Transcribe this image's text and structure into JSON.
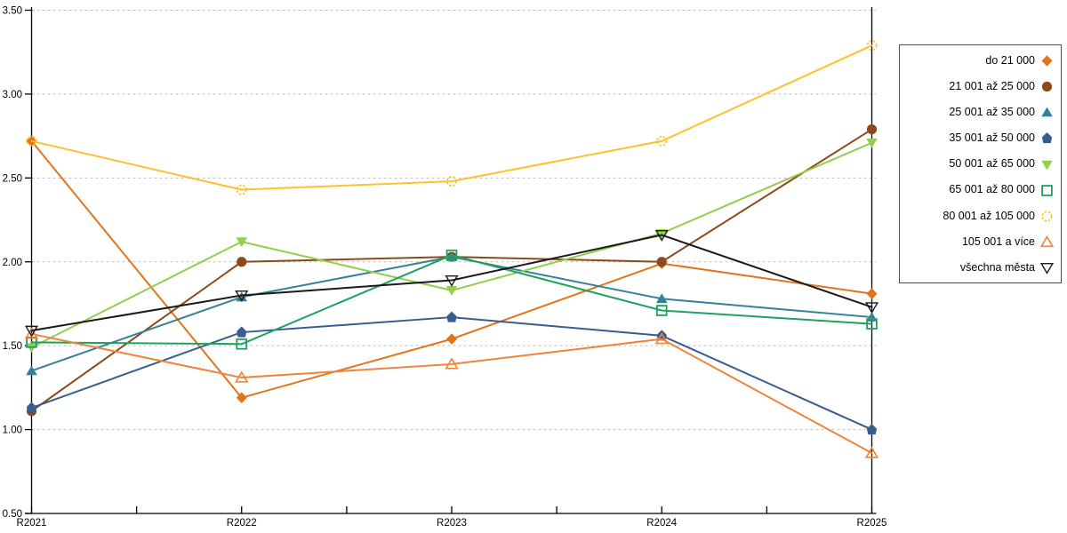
{
  "chart_data": {
    "type": "line",
    "title": "",
    "xlabel": "",
    "ylabel": "",
    "categories": [
      "R2021",
      "R2022",
      "R2023",
      "R2024",
      "R2025"
    ],
    "series": [
      {
        "name": "do 21 000",
        "color": "#E2751A",
        "marker": "diamond-filled",
        "values": [
          2.72,
          1.19,
          1.54,
          1.99,
          1.81
        ]
      },
      {
        "name": "21 001 až 25 000",
        "color": "#8B4A1C",
        "marker": "circle-filled",
        "values": [
          1.11,
          2.0,
          2.03,
          2.0,
          2.79
        ]
      },
      {
        "name": "25 001 až 35 000",
        "color": "#35809B",
        "marker": "triangle-up-filled",
        "values": [
          1.35,
          1.79,
          2.03,
          1.78,
          1.67
        ]
      },
      {
        "name": "35 001 až 50 000",
        "color": "#385D8F",
        "marker": "pentagon-filled",
        "values": [
          1.13,
          1.58,
          1.67,
          1.56,
          1.0
        ]
      },
      {
        "name": "50 001 až 65 000",
        "color": "#93CE4D",
        "marker": "triangle-down-filled",
        "values": [
          1.49,
          2.12,
          1.83,
          2.17,
          2.71
        ]
      },
      {
        "name": "65 001 až 80 000",
        "color": "#1FA25E",
        "marker": "square-open",
        "values": [
          1.52,
          1.51,
          2.04,
          1.71,
          1.63
        ]
      },
      {
        "name": "80 001 až 105 000",
        "color": "#FBC22B",
        "marker": "circle-open-dashed",
        "values": [
          2.72,
          2.43,
          2.48,
          2.72,
          3.29
        ]
      },
      {
        "name": "105 001 a více",
        "color": "#F0833A",
        "marker": "triangle-up-open",
        "values": [
          1.57,
          1.31,
          1.39,
          1.54,
          0.86
        ]
      },
      {
        "name": "všechna města",
        "color": "#1A1A1A",
        "marker": "triangle-down-open",
        "values": [
          1.59,
          1.8,
          1.89,
          2.16,
          1.73
        ]
      }
    ],
    "ylim": [
      0.5,
      3.5
    ],
    "ytick_step": 0.5,
    "ytick_labels": [
      "0.50",
      "1.00",
      "1.50",
      "2.00",
      "2.50",
      "3.00",
      "3.50"
    ],
    "grid": "horizontal-dashed",
    "grid_color": "#BFBFBF",
    "axis_color": "#000000",
    "legend_position": "right"
  }
}
